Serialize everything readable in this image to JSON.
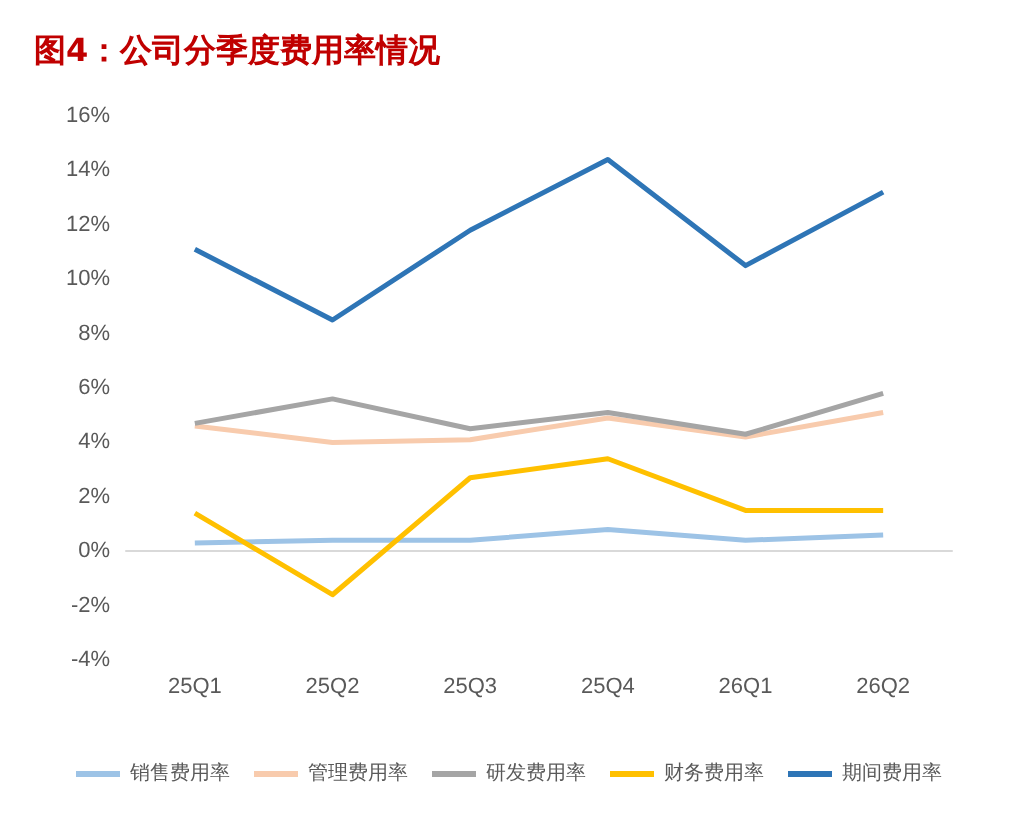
{
  "chart_data": {
    "type": "line",
    "title": "图4：公司分季度费用率情况",
    "categories": [
      "25Q1",
      "25Q2",
      "25Q3",
      "25Q4",
      "26Q1",
      "26Q2"
    ],
    "ylim": [
      -4,
      16
    ],
    "yticks": [
      {
        "value": -4,
        "label": "-4%"
      },
      {
        "value": -2,
        "label": "-2%"
      },
      {
        "value": 0,
        "label": "0%"
      },
      {
        "value": 2,
        "label": "2%"
      },
      {
        "value": 4,
        "label": "4%"
      },
      {
        "value": 6,
        "label": "6%"
      },
      {
        "value": 8,
        "label": "8%"
      },
      {
        "value": 10,
        "label": "10%"
      },
      {
        "value": 12,
        "label": "12%"
      },
      {
        "value": 14,
        "label": "14%"
      },
      {
        "value": 16,
        "label": "16%"
      }
    ],
    "legend": "bottom",
    "marker": "none",
    "series": [
      {
        "name": "销售费用率",
        "color": "#9dc3e6",
        "values": [
          0.3,
          0.4,
          0.4,
          0.8,
          0.4,
          0.6
        ]
      },
      {
        "name": "管理费用率",
        "color": "#f8cbad",
        "values": [
          4.6,
          4.0,
          4.1,
          4.9,
          4.2,
          5.1
        ]
      },
      {
        "name": "研发费用率",
        "color": "#a5a5a5",
        "values": [
          4.7,
          5.6,
          4.5,
          5.1,
          4.3,
          5.8
        ]
      },
      {
        "name": "财务费用率",
        "color": "#ffc000",
        "values": [
          1.4,
          -1.6,
          2.7,
          3.4,
          1.5,
          1.5
        ]
      },
      {
        "name": "期间费用率",
        "color": "#2e75b6",
        "values": [
          11.1,
          8.5,
          11.8,
          14.4,
          10.5,
          13.2
        ]
      }
    ]
  }
}
